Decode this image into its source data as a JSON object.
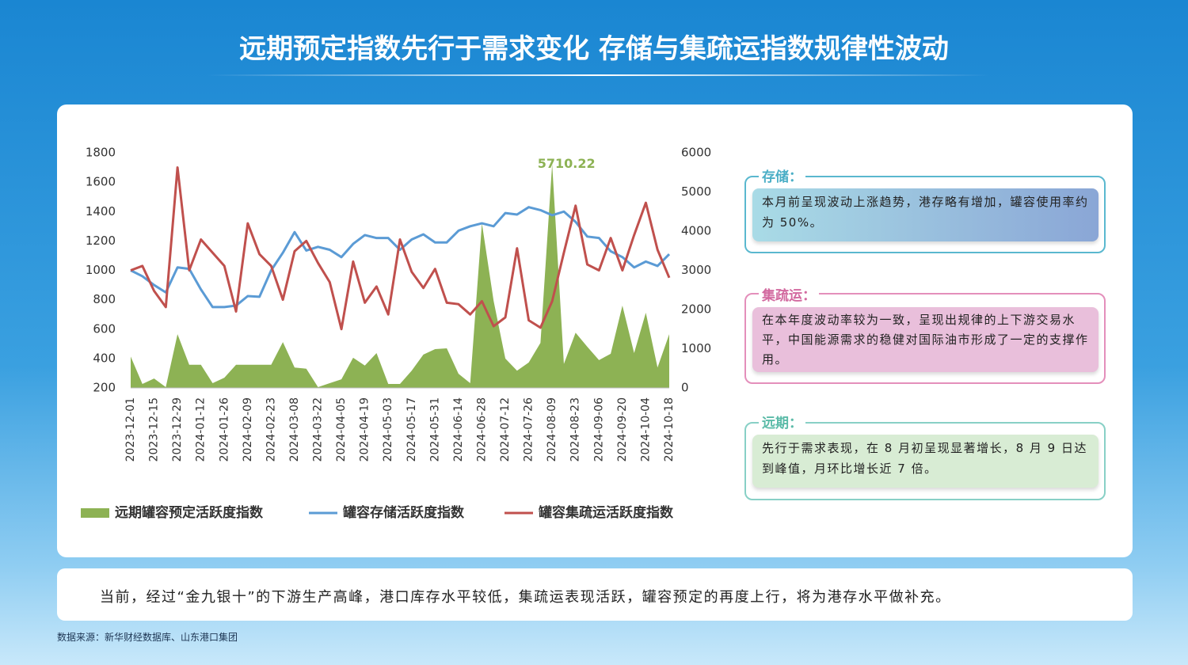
{
  "header": {
    "title": "远期预定指数先行于需求变化 存储与集疏运指数规律性波动"
  },
  "chart_data": {
    "type": "combo",
    "categories": [
      "2023-12-01",
      null,
      "2023-12-15",
      null,
      "2023-12-29",
      null,
      "2024-01-12",
      null,
      "2024-01-26",
      null,
      "2024-02-09",
      null,
      "2024-02-23",
      null,
      "2024-03-08",
      null,
      "2024-03-22",
      null,
      "2024-04-05",
      null,
      "2024-04-19",
      null,
      "2024-05-03",
      null,
      "2024-05-17",
      null,
      "2024-05-31",
      null,
      "2024-06-14",
      null,
      "2024-06-28",
      null,
      "2024-07-12",
      null,
      "2024-07-26",
      null,
      "2024-08-09",
      null,
      "2024-08-23",
      null,
      "2024-09-06",
      null,
      "2024-09-20",
      null,
      "2024-10-04",
      null,
      "2024-10-18"
    ],
    "series": [
      {
        "name": "远期罐容预定活跃度指数",
        "type": "area",
        "axis": "y2",
        "color": "#8db254",
        "values": [
          800,
          100,
          240,
          20,
          1370,
          590,
          590,
          120,
          260,
          590,
          590,
          590,
          590,
          1170,
          520,
          490,
          20,
          120,
          220,
          770,
          570,
          890,
          100,
          100,
          440,
          850,
          990,
          1010,
          360,
          120,
          4200,
          2220,
          750,
          440,
          650,
          1150,
          5710.22,
          610,
          1410,
          1050,
          710,
          870,
          2100,
          890,
          1920,
          520,
          1370
        ]
      },
      {
        "name": "罐容存储活跃度指数",
        "type": "line",
        "color": "#5b9bd5",
        "values": [
          1000,
          960,
          900,
          850,
          1020,
          1010,
          870,
          750,
          750,
          760,
          825,
          820,
          1000,
          1120,
          1260,
          1135,
          1160,
          1140,
          1090,
          1180,
          1240,
          1220,
          1220,
          1140,
          1210,
          1245,
          1190,
          1190,
          1270,
          1300,
          1320,
          1300,
          1390,
          1380,
          1430,
          1410,
          1375,
          1400,
          1330,
          1230,
          1220,
          1130,
          1090,
          1020,
          1060,
          1030,
          1110
        ]
      },
      {
        "name": "罐容集疏运活跃度指数",
        "type": "line",
        "color": "#c0504d",
        "values": [
          1000,
          1030,
          860,
          750,
          1700,
          1000,
          1210,
          1120,
          1030,
          720,
          1320,
          1110,
          1030,
          800,
          1130,
          1200,
          1050,
          920,
          600,
          1060,
          780,
          890,
          700,
          1210,
          990,
          880,
          1010,
          780,
          770,
          700,
          790,
          620,
          680,
          1150,
          660,
          610,
          790,
          1120,
          1440,
          1040,
          1000,
          1220,
          1000,
          1240,
          1460,
          1140,
          950
        ]
      }
    ],
    "ylim": [
      200,
      1800
    ],
    "yticks": [
      200,
      400,
      600,
      800,
      1000,
      1200,
      1400,
      1600,
      1800
    ],
    "y2lim": [
      0,
      6000
    ],
    "y2ticks": [
      0,
      1000,
      2000,
      3000,
      4000,
      5000,
      6000
    ],
    "grid": false,
    "legend": "bottom"
  },
  "notes": [
    {
      "title": "存储：",
      "text": "本月前呈现波动上涨趋势，港存略有增加，罐容使用率约为 50%。"
    },
    {
      "title": "集疏运：",
      "text": "在本年度波动率较为一致，呈现出规律的上下游交易水平，中国能源需求的稳健对国际油市形成了一定的支撑作用。"
    },
    {
      "title": "远期：",
      "text": "先行于需求表现，在 8 月初呈现显著增长，8 月 9 日达到峰值，月环比增长近 7 倍。"
    }
  ],
  "footer": {
    "text": "当前，经过“金九银十”的下游生产高峰，港口库存水平较低，集疏运表现活跃，罐容预定的再度上行，将为港存水平做补充。"
  },
  "source": {
    "text": "数据来源：新华财经数据库、山东港口集团"
  }
}
